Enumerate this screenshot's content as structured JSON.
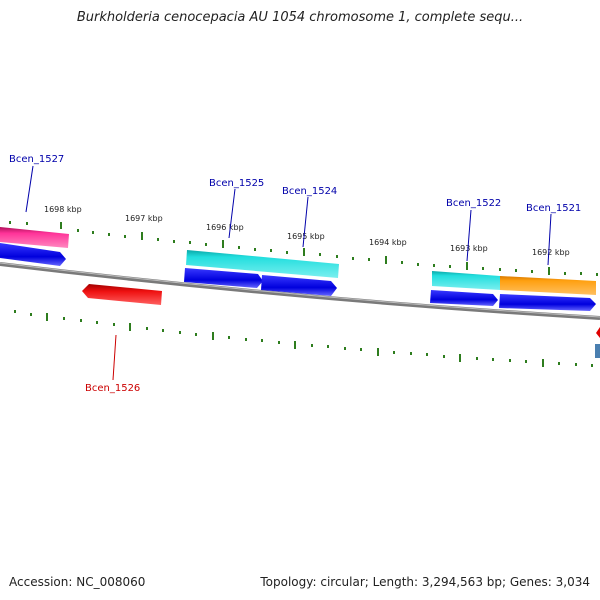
{
  "title": "Burkholderia cenocepacia AU 1054 chromosome 1, complete sequ...",
  "footer": {
    "accession": "Accession: NC_008060",
    "topology": "Topology: circular; Length: 3,294,563 bp; Genes: 3,034"
  },
  "kbp_labels": [
    "1698 kbp",
    "1697 kbp",
    "1696 kbp",
    "1695 kbp",
    "1694 kbp",
    "1693 kbp",
    "1692 kbp"
  ],
  "gene_labels": [
    {
      "name": "Bcen_1527",
      "strand": "forward"
    },
    {
      "name": "Bcen_1525",
      "strand": "forward"
    },
    {
      "name": "Bcen_1524",
      "strand": "forward"
    },
    {
      "name": "Bcen_1522",
      "strand": "forward"
    },
    {
      "name": "Bcen_1521",
      "strand": "forward"
    },
    {
      "name": "Bcen_1526",
      "strand": "reverse"
    }
  ],
  "colors": {
    "forward_label": "#0000aa",
    "reverse_label": "#cc0000",
    "tick": "#2e7d1e",
    "backbone": "#888888",
    "cds": "#0000ee",
    "magenta": "#ee2288",
    "cyan": "#1ccfcf",
    "orange": "#ff9900",
    "red": "#e00000"
  }
}
